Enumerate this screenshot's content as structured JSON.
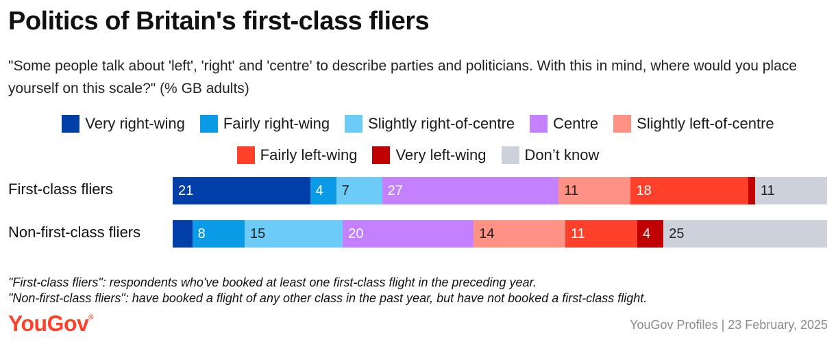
{
  "header": {
    "title": "Politics of Britain's first-class fliers",
    "subtitle": "\"Some people talk about 'left', 'right' and 'centre' to describe parties and politicians. With this in mind, where would you place yourself on this scale?\" (% GB adults)"
  },
  "footer": {
    "note1": "\"First-class fliers\": respondents who've booked at least one first-class flight in the preceding year.",
    "note2": "\"Non-first-class fliers\": have booked a flight of any other class in the past year, but have not booked a first-class flight.",
    "logo": "YouGov",
    "source": "YouGov Profiles | 23 February, 2025"
  },
  "chart_data": {
    "type": "bar",
    "orientation": "horizontal",
    "stacked": true,
    "categories": [
      "First-class fliers",
      "Non-first-class fliers"
    ],
    "series": [
      {
        "name": "Very right-wing",
        "color": "#003ea8",
        "label_color": "#ffffff",
        "values": [
          21,
          3
        ],
        "labels": [
          "21",
          ""
        ]
      },
      {
        "name": "Fairly right-wing",
        "color": "#0a9ae6",
        "label_color": "#ffffff",
        "values": [
          4,
          8
        ],
        "labels": [
          "4",
          "8"
        ]
      },
      {
        "name": "Slightly right-of-centre",
        "color": "#6ccbf7",
        "label_color": "#222222",
        "values": [
          7,
          15
        ],
        "labels": [
          "7",
          "15"
        ]
      },
      {
        "name": "Centre",
        "color": "#c380ff",
        "label_color": "#ffffff",
        "values": [
          27,
          20
        ],
        "labels": [
          "27",
          "20"
        ]
      },
      {
        "name": "Slightly left-of-centre",
        "color": "#ff9185",
        "label_color": "#222222",
        "values": [
          11,
          14
        ],
        "labels": [
          "11",
          "14"
        ]
      },
      {
        "name": "Fairly left-wing",
        "color": "#ff412c",
        "label_color": "#ffffff",
        "values": [
          18,
          11
        ],
        "labels": [
          "18",
          "11"
        ]
      },
      {
        "name": "Very left-wing",
        "color": "#c00000",
        "label_color": "#ffffff",
        "values": [
          1,
          4
        ],
        "labels": [
          "",
          "4"
        ]
      },
      {
        "name": "Don’t know",
        "color": "#cdd1dc",
        "label_color": "#222222",
        "values": [
          11,
          25
        ],
        "labels": [
          "11",
          "25"
        ]
      }
    ],
    "legend_position": "top-center",
    "grid": false
  }
}
